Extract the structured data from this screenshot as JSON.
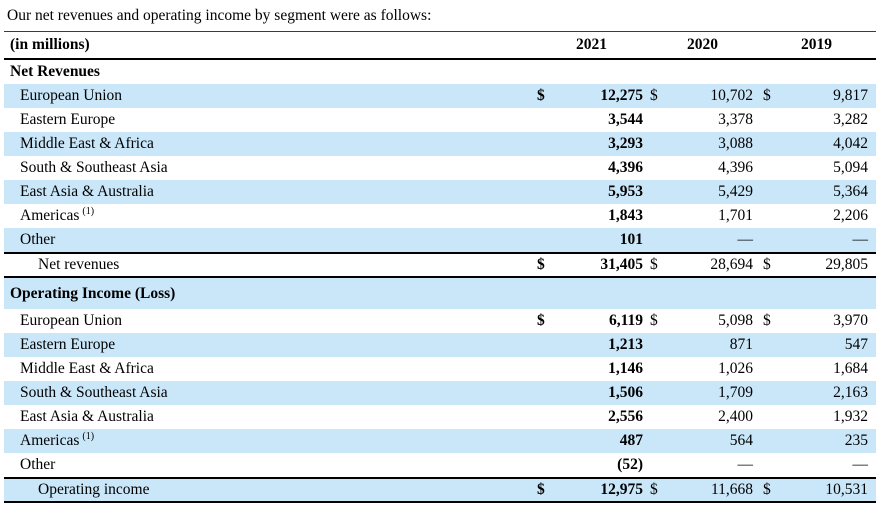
{
  "intro": "Our net revenues and operating income by segment were as follows:",
  "colors": {
    "row_highlight": "#cae7fa",
    "rule": "#000000",
    "text": "#000000"
  },
  "table": {
    "unit_label": "(in millions)",
    "currency": "$",
    "years": [
      "2021",
      "2020",
      "2019"
    ],
    "sections": [
      {
        "header": "Net Revenues",
        "rows": [
          {
            "label": "European Union",
            "sup": "",
            "dollar": true,
            "values": [
              "12,275",
              "10,702",
              "9,817"
            ]
          },
          {
            "label": "Eastern Europe",
            "sup": "",
            "dollar": false,
            "values": [
              "3,544",
              "3,378",
              "3,282"
            ]
          },
          {
            "label": "Middle East & Africa",
            "sup": "",
            "dollar": false,
            "values": [
              "3,293",
              "3,088",
              "4,042"
            ]
          },
          {
            "label": "South & Southeast Asia",
            "sup": "",
            "dollar": false,
            "values": [
              "4,396",
              "4,396",
              "5,094"
            ]
          },
          {
            "label": "East Asia & Australia",
            "sup": "",
            "dollar": false,
            "values": [
              "5,953",
              "5,429",
              "5,364"
            ]
          },
          {
            "label": "Americas",
            "sup": "(1)",
            "dollar": false,
            "values": [
              "1,843",
              "1,701",
              "2,206"
            ]
          },
          {
            "label": "Other",
            "sup": "",
            "dollar": false,
            "values": [
              "101",
              "—",
              "—"
            ]
          }
        ],
        "total": {
          "label": "Net revenues",
          "dollar": true,
          "values": [
            "31,405",
            "28,694",
            "29,805"
          ]
        }
      },
      {
        "header": "Operating Income (Loss)",
        "rows": [
          {
            "label": "European Union",
            "sup": "",
            "dollar": true,
            "values": [
              "6,119",
              "5,098",
              "3,970"
            ]
          },
          {
            "label": "Eastern Europe",
            "sup": "",
            "dollar": false,
            "values": [
              "1,213",
              "871",
              "547"
            ]
          },
          {
            "label": "Middle East & Africa",
            "sup": "",
            "dollar": false,
            "values": [
              "1,146",
              "1,026",
              "1,684"
            ]
          },
          {
            "label": "South & Southeast Asia",
            "sup": "",
            "dollar": false,
            "values": [
              "1,506",
              "1,709",
              "2,163"
            ]
          },
          {
            "label": "East Asia & Australia",
            "sup": "",
            "dollar": false,
            "values": [
              "2,556",
              "2,400",
              "1,932"
            ]
          },
          {
            "label": "Americas",
            "sup": "(1)",
            "dollar": false,
            "values": [
              "487",
              "564",
              "235"
            ]
          },
          {
            "label": "Other",
            "sup": "",
            "dollar": false,
            "values": [
              "(52)",
              "—",
              "—"
            ]
          }
        ],
        "total": {
          "label": "Operating income",
          "dollar": true,
          "values": [
            "12,975",
            "11,668",
            "10,531"
          ]
        }
      }
    ]
  }
}
